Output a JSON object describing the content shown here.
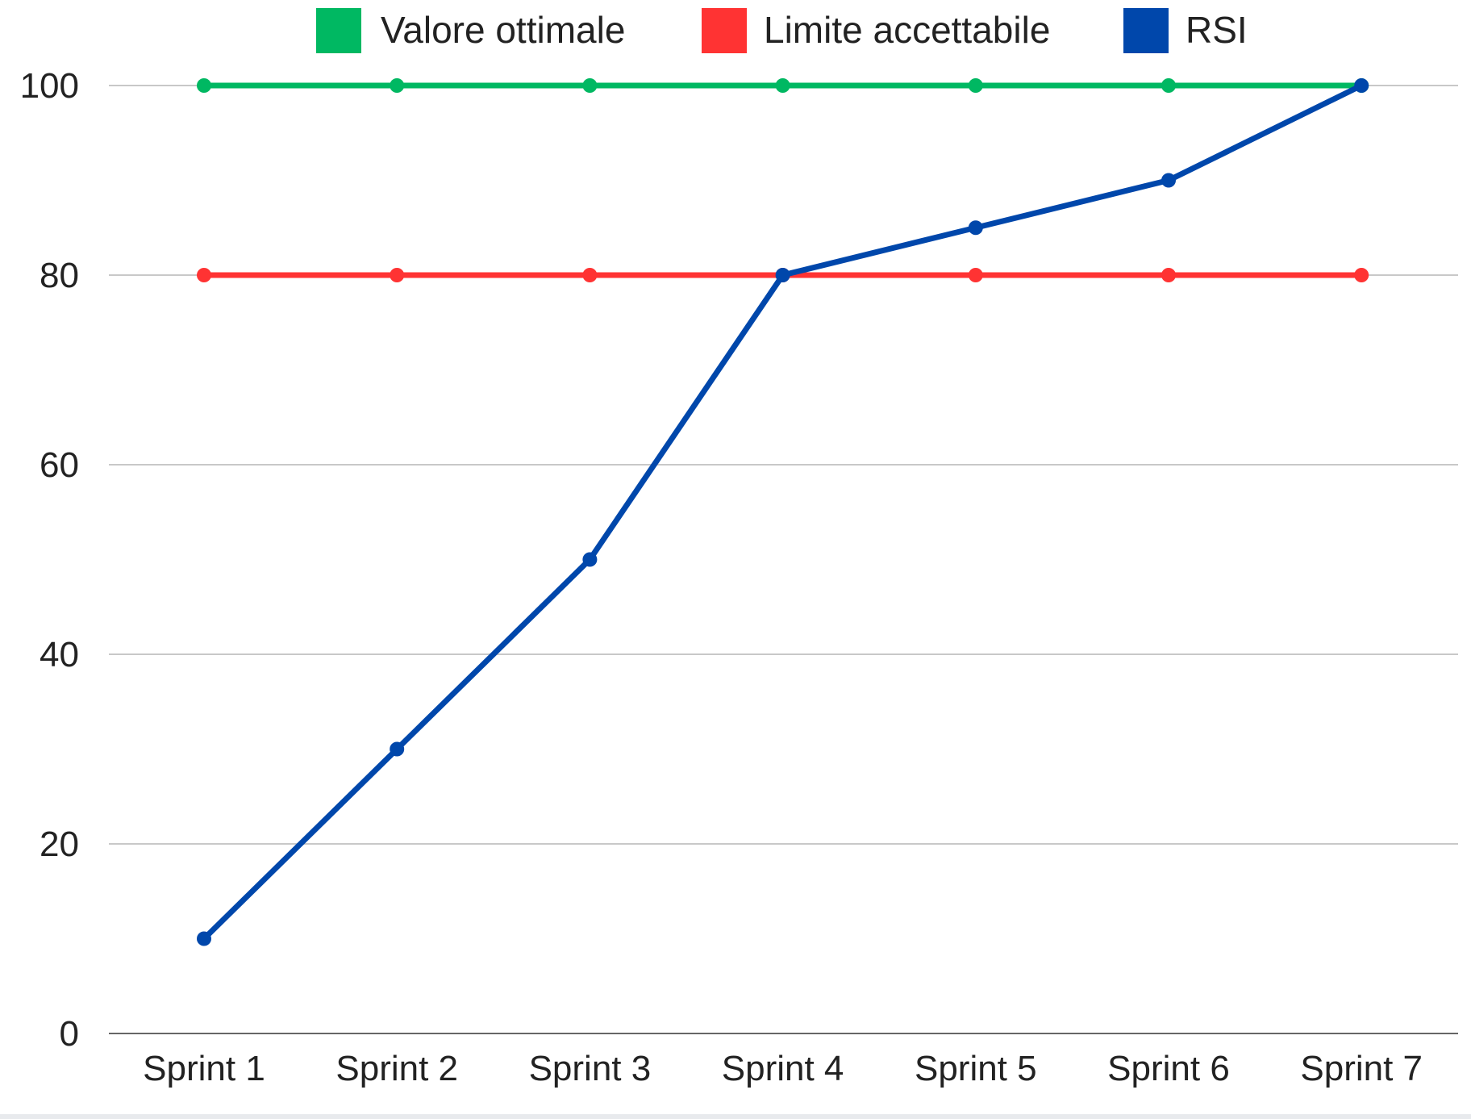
{
  "chart_data": {
    "type": "line",
    "title": "",
    "xlabel": "",
    "ylabel": "",
    "categories": [
      "Sprint 1",
      "Sprint 2",
      "Sprint 3",
      "Sprint 4",
      "Sprint 5",
      "Sprint 6",
      "Sprint 7"
    ],
    "ylim": [
      0,
      100
    ],
    "yticks": [
      0,
      20,
      40,
      60,
      80,
      100
    ],
    "grid": true,
    "legend_position": "top-center",
    "series": [
      {
        "name": "Valore ottimale",
        "color": "#00b862",
        "values": [
          100,
          100,
          100,
          100,
          100,
          100,
          100
        ]
      },
      {
        "name": "Limite accettabile",
        "color": "#ff3333",
        "values": [
          80,
          80,
          80,
          80,
          80,
          80,
          80
        ]
      },
      {
        "name": "RSI",
        "color": "#0047ab",
        "values": [
          10,
          30,
          50,
          80,
          85,
          90,
          100
        ]
      }
    ]
  }
}
